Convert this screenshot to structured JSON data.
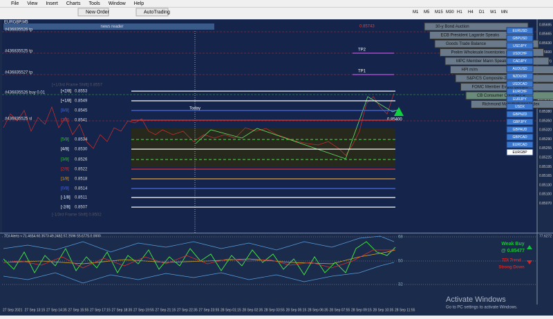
{
  "menu": {
    "items": [
      "File",
      "View",
      "Insert",
      "Charts",
      "Tools",
      "Window",
      "Help"
    ]
  },
  "toolbar": {
    "new_order": "New Order",
    "autotrading": "AutoTrading",
    "timeframes": [
      "M1",
      "M5",
      "M15",
      "M30",
      "H1",
      "H4",
      "D1",
      "W1",
      "MN"
    ]
  },
  "chart": {
    "symbol": "EURGBP,M5",
    "news_reader": "news reader",
    "top_price": "0.85743",
    "order_labels": [
      "#436835526 tp",
      "#436835525 tp",
      "#436835527 tp",
      "#436835526 buy 0.01",
      "#436835525 sl"
    ],
    "tp_labels": [
      "TP2",
      "TP1"
    ],
    "today": "Today",
    "current_price": "0.85475",
    "pattern_price": "0.85400",
    "frame_shift_top": "[+1/3rd Frame Shift]  0.8557",
    "frame_shift_bottom": "[-1/3rd Frame Shift]  0.8502",
    "murrey": [
      {
        "label": "[+2/8]",
        "price": "0.8553"
      },
      {
        "label": "[+1/8]",
        "price": "0.8549"
      },
      {
        "label": "[8/8]",
        "price": "0.8545"
      },
      {
        "label": "[7/8]",
        "price": "0.8541"
      },
      {
        "label": "[5/8]",
        "price": "0.8534"
      },
      {
        "label": "[4/8]",
        "price": "0.8530"
      },
      {
        "label": "[3/8]",
        "price": "0.8526"
      },
      {
        "label": "[2/8]",
        "price": "0.8522"
      },
      {
        "label": "[1/8]",
        "price": "0.8518"
      },
      {
        "label": "[0/8]",
        "price": "0.8514"
      },
      {
        "label": "[-1/8]",
        "price": "0.8511"
      },
      {
        "label": "[-2/8]",
        "price": "0.8507"
      }
    ],
    "price_axis": [
      "0.85695",
      "0.85665",
      "0.85630",
      "0.85600",
      "0.85570",
      "0.85540",
      "0.85510",
      "0.85445",
      "0.85415",
      "0.85380",
      "0.85350",
      "0.85320",
      "0.85290",
      "0.85255",
      "0.85225",
      "0.85195",
      "0.85165",
      "0.85130",
      "0.85100",
      "0.85070"
    ]
  },
  "news": [
    "30-y Bond Auction",
    "ECB President Lagarde Speaks",
    "Goods Trade Balance",
    "Prelim Wholesale Inventories m/m",
    "MPC Member Mann Speaks",
    "HPI m/m",
    "S&P/CS Composite-20 HPI y/y",
    "FOMC Member Evans Speaks",
    "CB Consumer Confidence",
    "Richmond Manufacturing Index"
  ],
  "symbols": [
    "EURUSD",
    "GBPUSD",
    "USDJPY",
    "USDCHF",
    "CADJPY",
    "AUDUSD",
    "NZDUSD",
    "USDCAD",
    "EURCHF",
    "EURJPY",
    "USDX",
    "GBPNZD",
    "GBPJPY",
    "GBPAUD",
    "GBPCAD",
    "EURCAD",
    "EURGBP"
  ],
  "indicator": {
    "header": "TDI Alerts v 71.4654 60.3573 49.2492 57.2596 55.6775 0.0000",
    "levels": [
      "68",
      "50",
      "32"
    ],
    "axis_top": "77.6272",
    "signal": "Weak Buy",
    "signal_price": "@ 0.85477",
    "trend_title": "TDI Trend",
    "trend": "Strong Down"
  },
  "time_axis": [
    "27 Sep 2021",
    "27 Sep 13:15",
    "27 Sep 14:35",
    "27 Sep 15:55",
    "27 Sep 17:15",
    "27 Sep 18:35",
    "27 Sep 19:55",
    "27 Sep 21:15",
    "27 Sep 22:35",
    "27 Sep 23:55",
    "28 Sep 01:15",
    "28 Sep 02:35",
    "28 Sep 03:55",
    "28 Sep 05:15",
    "28 Sep 06:35",
    "28 Sep 07:55",
    "28 Sep 09:15",
    "28 Sep 10:35",
    "28 Sep 11:55"
  ],
  "watermark": {
    "title": "Activate Windows",
    "subtitle": "Go to PC settings to activate Windows."
  }
}
